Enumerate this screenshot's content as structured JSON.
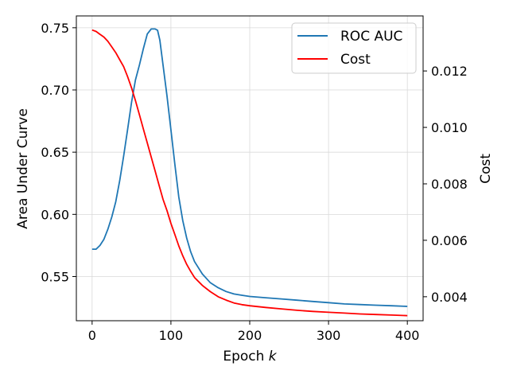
{
  "chart_data": {
    "type": "line",
    "xlabel": "Epoch",
    "xlabel_var": "k",
    "ylabel_left": "Area Under Curve",
    "ylabel_right": "Cost",
    "xlim": [
      -20,
      420
    ],
    "ylim_left": [
      0.5145,
      0.7595
    ],
    "ylim_right": [
      0.00315,
      0.01395
    ],
    "xticks": [
      0,
      100,
      200,
      300,
      400
    ],
    "yticks_left": [
      0.55,
      0.6,
      0.65,
      0.7,
      0.75
    ],
    "yticks_right": [
      0.004,
      0.006,
      0.008,
      0.01,
      0.012
    ],
    "ytick_left_labels": [
      "0.55",
      "0.60",
      "0.65",
      "0.70",
      "0.75"
    ],
    "ytick_right_labels": [
      "0.004",
      "0.006",
      "0.008",
      "0.010",
      "0.012"
    ],
    "grid": true,
    "legend_position": "top-right",
    "series": [
      {
        "name": "ROC AUC",
        "axis": "left",
        "color": "#1f77b4",
        "x": [
          0,
          5,
          10,
          15,
          20,
          25,
          30,
          35,
          40,
          45,
          50,
          55,
          60,
          65,
          70,
          75,
          80,
          83,
          86,
          90,
          95,
          100,
          105,
          110,
          115,
          120,
          125,
          130,
          140,
          150,
          160,
          170,
          180,
          190,
          200,
          220,
          240,
          260,
          280,
          300,
          320,
          340,
          360,
          380,
          400
        ],
        "y": [
          0.572,
          0.572,
          0.575,
          0.58,
          0.588,
          0.598,
          0.61,
          0.627,
          0.647,
          0.668,
          0.69,
          0.708,
          0.72,
          0.733,
          0.745,
          0.749,
          0.749,
          0.748,
          0.74,
          0.72,
          0.695,
          0.668,
          0.64,
          0.614,
          0.595,
          0.581,
          0.57,
          0.562,
          0.552,
          0.545,
          0.541,
          0.538,
          0.536,
          0.535,
          0.534,
          0.533,
          0.532,
          0.531,
          0.53,
          0.529,
          0.528,
          0.5275,
          0.527,
          0.5265,
          0.526
        ]
      },
      {
        "name": "Cost",
        "axis": "right",
        "color": "#ff0000",
        "x": [
          0,
          5,
          10,
          15,
          20,
          25,
          30,
          35,
          40,
          45,
          50,
          55,
          60,
          65,
          70,
          75,
          80,
          85,
          90,
          95,
          100,
          105,
          110,
          115,
          120,
          125,
          130,
          140,
          150,
          160,
          170,
          180,
          190,
          200,
          220,
          240,
          260,
          280,
          300,
          320,
          340,
          360,
          380,
          400
        ],
        "y": [
          0.01345,
          0.0134,
          0.0133,
          0.0132,
          0.01305,
          0.01285,
          0.01265,
          0.0124,
          0.01215,
          0.0118,
          0.0114,
          0.01095,
          0.01045,
          0.00995,
          0.00945,
          0.00895,
          0.00845,
          0.00795,
          0.00745,
          0.00705,
          0.0066,
          0.0062,
          0.0058,
          0.00545,
          0.00515,
          0.0049,
          0.00468,
          0.0044,
          0.00418,
          0.004,
          0.00388,
          0.00378,
          0.00372,
          0.00368,
          0.00362,
          0.00357,
          0.00352,
          0.00348,
          0.00345,
          0.00342,
          0.00339,
          0.00337,
          0.00335,
          0.00333
        ]
      }
    ]
  }
}
